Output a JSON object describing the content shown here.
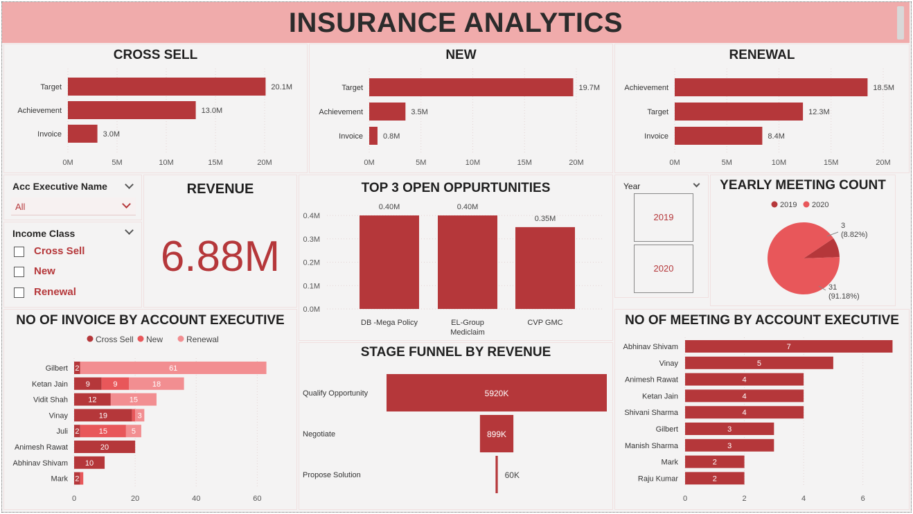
{
  "header": {
    "title": "INSURANCE ANALYTICS"
  },
  "colors": {
    "dark_red": "#b5373a",
    "mid_red": "#e8575a",
    "light_red": "#f28e91",
    "header_bg": "#f0abab"
  },
  "cross_sell": {
    "title": "CROSS SELL",
    "chart_data": {
      "type": "bar",
      "orientation": "horizontal",
      "categories": [
        "Target",
        "Achievement",
        "Invoice"
      ],
      "values": [
        20.1,
        13.0,
        3.0
      ],
      "labels": [
        "20.1M",
        "13.0M",
        "3.0M"
      ],
      "xticks": [
        "0M",
        "5M",
        "10M",
        "15M",
        "20M"
      ],
      "xlim": [
        0,
        20
      ]
    }
  },
  "new": {
    "title": "NEW",
    "chart_data": {
      "type": "bar",
      "orientation": "horizontal",
      "categories": [
        "Target",
        "Achievement",
        "Invoice"
      ],
      "values": [
        19.7,
        3.5,
        0.8
      ],
      "labels": [
        "19.7M",
        "3.5M",
        "0.8M"
      ],
      "xticks": [
        "0M",
        "5M",
        "10M",
        "15M",
        "20M"
      ],
      "xlim": [
        0,
        20
      ]
    }
  },
  "renewal": {
    "title": "RENEWAL",
    "chart_data": {
      "type": "bar",
      "orientation": "horizontal",
      "categories": [
        "Achievement",
        "Target",
        "Invoice"
      ],
      "values": [
        18.5,
        12.3,
        8.4
      ],
      "labels": [
        "18.5M",
        "12.3M",
        "8.4M"
      ],
      "xticks": [
        "0M",
        "5M",
        "10M",
        "15M",
        "20M"
      ],
      "xlim": [
        0,
        20
      ]
    }
  },
  "slicers": {
    "acc_exec": {
      "label": "Acc Executive Name",
      "value": "All"
    },
    "income_class": {
      "label": "Income Class",
      "options": [
        "Cross Sell",
        "New",
        "Renewal"
      ]
    },
    "year": {
      "label": "Year",
      "options": [
        "2019",
        "2020"
      ]
    }
  },
  "revenue": {
    "title": "REVENUE",
    "value": "6.88M"
  },
  "top3": {
    "title": "TOP 3 OPEN OPPURTUNITIES",
    "chart_data": {
      "type": "bar",
      "categories": [
        [
          "DB -Mega Policy"
        ],
        [
          "EL-Group",
          "Mediclaim"
        ],
        [
          "CVP GMC"
        ]
      ],
      "values": [
        0.4,
        0.4,
        0.35
      ],
      "labels": [
        "0.40M",
        "0.40M",
        "0.35M"
      ],
      "yticks": [
        "0.0M",
        "0.1M",
        "0.2M",
        "0.3M",
        "0.4M"
      ],
      "ylim": [
        0,
        0.4
      ]
    }
  },
  "yearly_meeting": {
    "title": "YEARLY MEETING COUNT",
    "chart_data": {
      "type": "pie",
      "series": [
        {
          "name": "2019",
          "value": 3,
          "label": "3",
          "pct": "(8.82%)",
          "color": "#b5373a"
        },
        {
          "name": "2020",
          "value": 31,
          "label": "31",
          "pct": "(91.18%)",
          "color": "#e8575a"
        }
      ]
    }
  },
  "invoice_by_exec": {
    "title": "NO OF INVOICE BY ACCOUNT EXECUTIVE",
    "chart_data": {
      "type": "bar",
      "orientation": "horizontal",
      "stacked": true,
      "legend": [
        "Cross Sell",
        "New",
        "Renewal"
      ],
      "categories": [
        "Gilbert",
        "Ketan Jain",
        "Vidit Shah",
        "Vinay",
        "Juli",
        "Animesh Rawat",
        "Abhinav Shivam",
        "Mark"
      ],
      "series": [
        {
          "name": "Cross Sell",
          "values": [
            2,
            9,
            12,
            19,
            2,
            20,
            10,
            2
          ]
        },
        {
          "name": "New",
          "values": [
            0,
            9,
            0,
            1,
            15,
            0,
            0,
            1
          ]
        },
        {
          "name": "Renewal",
          "values": [
            61,
            18,
            15,
            3,
            5,
            0,
            0,
            0
          ]
        }
      ],
      "labels": [
        [
          "2",
          "",
          "61"
        ],
        [
          "9",
          "9",
          "18"
        ],
        [
          "12",
          "",
          "15"
        ],
        [
          "19",
          "",
          "3"
        ],
        [
          "2",
          "15",
          "5"
        ],
        [
          "20",
          "",
          ""
        ],
        [
          "10",
          "",
          ""
        ],
        [
          "2",
          "",
          ""
        ]
      ],
      "xticks": [
        "0",
        "20",
        "40",
        "60"
      ],
      "xlim": [
        0,
        69
      ]
    }
  },
  "funnel": {
    "title": "STAGE FUNNEL BY REVENUE",
    "chart_data": {
      "type": "bar",
      "orientation": "funnel",
      "categories": [
        "Qualify Opportunity",
        "Negotiate",
        "Propose Solution"
      ],
      "values": [
        5920,
        899,
        60
      ],
      "labels": [
        "5920K",
        "899K",
        "60K"
      ]
    }
  },
  "meeting_by_exec": {
    "title": "NO OF MEETING BY ACCOUNT EXECUTIVE",
    "chart_data": {
      "type": "bar",
      "orientation": "horizontal",
      "categories": [
        "Abhinav Shivam",
        "Vinay",
        "Animesh Rawat",
        "Ketan Jain",
        "Shivani Sharma",
        "Gilbert",
        "Manish Sharma",
        "Mark",
        "Raju Kumar"
      ],
      "values": [
        7,
        5,
        4,
        4,
        4,
        3,
        3,
        2,
        2
      ],
      "xticks": [
        "0",
        "2",
        "4",
        "6"
      ],
      "xlim": [
        0,
        7.2
      ]
    }
  }
}
